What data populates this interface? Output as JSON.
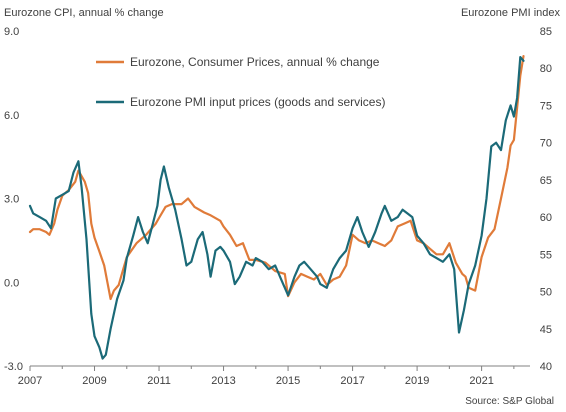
{
  "chart_data": {
    "type": "line",
    "left_axis_title": "Eurozone CPI, annual % change",
    "right_axis_title": "Eurozone PMI index",
    "source": "Source: S&P Global",
    "x_ticks": [
      "2007",
      "2009",
      "2011",
      "2013",
      "2015",
      "2017",
      "2019",
      "2021"
    ],
    "x_range": [
      2007.0,
      2022.5
    ],
    "left_ticks": [
      "9.0",
      "6.0",
      "3.0",
      "0.0",
      "-3.0"
    ],
    "left_range": [
      -3,
      9
    ],
    "right_ticks": [
      "85",
      "80",
      "75",
      "70",
      "65",
      "60",
      "55",
      "50",
      "45",
      "40"
    ],
    "right_range": [
      40,
      85
    ],
    "grid": false,
    "legend_position": "top-center",
    "series": [
      {
        "name": "Eurozone, Consumer Prices, annual % change",
        "axis": "left",
        "color": "#e07b39",
        "points": [
          [
            2007.0,
            1.8
          ],
          [
            2007.1,
            1.9
          ],
          [
            2007.3,
            1.9
          ],
          [
            2007.5,
            1.8
          ],
          [
            2007.6,
            1.7
          ],
          [
            2007.75,
            2.1
          ],
          [
            2007.85,
            2.6
          ],
          [
            2008.0,
            3.1
          ],
          [
            2008.2,
            3.3
          ],
          [
            2008.4,
            3.6
          ],
          [
            2008.5,
            4.0
          ],
          [
            2008.6,
            3.8
          ],
          [
            2008.7,
            3.6
          ],
          [
            2008.8,
            3.2
          ],
          [
            2008.9,
            2.1
          ],
          [
            2009.0,
            1.6
          ],
          [
            2009.15,
            1.1
          ],
          [
            2009.3,
            0.6
          ],
          [
            2009.4,
            0.0
          ],
          [
            2009.5,
            -0.6
          ],
          [
            2009.6,
            -0.3
          ],
          [
            2009.75,
            -0.1
          ],
          [
            2009.9,
            0.5
          ],
          [
            2010.0,
            0.9
          ],
          [
            2010.3,
            1.4
          ],
          [
            2010.6,
            1.7
          ],
          [
            2010.9,
            2.1
          ],
          [
            2011.0,
            2.3
          ],
          [
            2011.2,
            2.7
          ],
          [
            2011.4,
            2.8
          ],
          [
            2011.7,
            2.8
          ],
          [
            2011.9,
            3.0
          ],
          [
            2012.1,
            2.7
          ],
          [
            2012.4,
            2.5
          ],
          [
            2012.6,
            2.4
          ],
          [
            2012.9,
            2.2
          ],
          [
            2013.0,
            2.0
          ],
          [
            2013.2,
            1.7
          ],
          [
            2013.4,
            1.3
          ],
          [
            2013.6,
            1.4
          ],
          [
            2013.8,
            0.8
          ],
          [
            2014.0,
            0.8
          ],
          [
            2014.3,
            0.7
          ],
          [
            2014.6,
            0.4
          ],
          [
            2014.9,
            0.3
          ],
          [
            2015.0,
            -0.5
          ],
          [
            2015.2,
            0.0
          ],
          [
            2015.4,
            0.3
          ],
          [
            2015.6,
            0.2
          ],
          [
            2015.8,
            0.1
          ],
          [
            2016.0,
            0.3
          ],
          [
            2016.2,
            -0.1
          ],
          [
            2016.4,
            0.1
          ],
          [
            2016.6,
            0.2
          ],
          [
            2016.8,
            0.6
          ],
          [
            2017.0,
            1.7
          ],
          [
            2017.2,
            1.5
          ],
          [
            2017.4,
            1.4
          ],
          [
            2017.6,
            1.5
          ],
          [
            2017.8,
            1.4
          ],
          [
            2018.0,
            1.3
          ],
          [
            2018.2,
            1.5
          ],
          [
            2018.4,
            2.0
          ],
          [
            2018.6,
            2.1
          ],
          [
            2018.8,
            2.2
          ],
          [
            2019.0,
            1.5
          ],
          [
            2019.2,
            1.4
          ],
          [
            2019.4,
            1.2
          ],
          [
            2019.6,
            1.0
          ],
          [
            2019.8,
            1.0
          ],
          [
            2020.0,
            1.4
          ],
          [
            2020.2,
            0.7
          ],
          [
            2020.4,
            0.3
          ],
          [
            2020.5,
            0.2
          ],
          [
            2020.6,
            -0.2
          ],
          [
            2020.8,
            -0.3
          ],
          [
            2021.0,
            0.9
          ],
          [
            2021.2,
            1.6
          ],
          [
            2021.4,
            1.9
          ],
          [
            2021.6,
            3.0
          ],
          [
            2021.8,
            4.1
          ],
          [
            2021.9,
            4.9
          ],
          [
            2022.0,
            5.1
          ],
          [
            2022.2,
            7.4
          ],
          [
            2022.3,
            8.1
          ]
        ]
      },
      {
        "name": "Eurozone PMI input prices (goods and services)",
        "axis": "right",
        "color": "#1b6a78",
        "points": [
          [
            2007.0,
            61.5
          ],
          [
            2007.1,
            60.5
          ],
          [
            2007.3,
            60.0
          ],
          [
            2007.5,
            59.5
          ],
          [
            2007.65,
            58.5
          ],
          [
            2007.8,
            62.5
          ],
          [
            2008.0,
            63.0
          ],
          [
            2008.2,
            63.5
          ],
          [
            2008.35,
            66.0
          ],
          [
            2008.5,
            67.5
          ],
          [
            2008.6,
            64.0
          ],
          [
            2008.75,
            57.0
          ],
          [
            2008.9,
            47.0
          ],
          [
            2009.0,
            44.0
          ],
          [
            2009.15,
            42.5
          ],
          [
            2009.25,
            41.0
          ],
          [
            2009.35,
            41.5
          ],
          [
            2009.5,
            45.0
          ],
          [
            2009.7,
            49.0
          ],
          [
            2009.9,
            51.5
          ],
          [
            2010.0,
            54.5
          ],
          [
            2010.2,
            57.5
          ],
          [
            2010.35,
            60.0
          ],
          [
            2010.5,
            58.0
          ],
          [
            2010.65,
            56.5
          ],
          [
            2010.8,
            59.0
          ],
          [
            2010.95,
            61.5
          ],
          [
            2011.05,
            65.0
          ],
          [
            2011.15,
            66.8
          ],
          [
            2011.3,
            64.0
          ],
          [
            2011.5,
            61.0
          ],
          [
            2011.7,
            57.0
          ],
          [
            2011.85,
            53.5
          ],
          [
            2012.0,
            54.0
          ],
          [
            2012.2,
            57.0
          ],
          [
            2012.35,
            58.0
          ],
          [
            2012.5,
            55.0
          ],
          [
            2012.6,
            52.0
          ],
          [
            2012.75,
            55.5
          ],
          [
            2012.9,
            56.0
          ],
          [
            2013.0,
            55.5
          ],
          [
            2013.2,
            54.0
          ],
          [
            2013.35,
            51.0
          ],
          [
            2013.5,
            52.0
          ],
          [
            2013.7,
            54.0
          ],
          [
            2013.9,
            53.5
          ],
          [
            2014.0,
            54.5
          ],
          [
            2014.2,
            54.0
          ],
          [
            2014.4,
            53.0
          ],
          [
            2014.6,
            53.5
          ],
          [
            2014.8,
            51.5
          ],
          [
            2015.0,
            49.5
          ],
          [
            2015.2,
            52.0
          ],
          [
            2015.35,
            53.5
          ],
          [
            2015.5,
            54.0
          ],
          [
            2015.7,
            53.0
          ],
          [
            2015.9,
            52.0
          ],
          [
            2016.0,
            51.0
          ],
          [
            2016.2,
            50.5
          ],
          [
            2016.4,
            53.0
          ],
          [
            2016.6,
            54.5
          ],
          [
            2016.8,
            55.5
          ],
          [
            2017.0,
            58.5
          ],
          [
            2017.15,
            60.0
          ],
          [
            2017.3,
            58.0
          ],
          [
            2017.5,
            56.0
          ],
          [
            2017.7,
            58.0
          ],
          [
            2017.9,
            60.5
          ],
          [
            2018.0,
            61.5
          ],
          [
            2018.2,
            59.5
          ],
          [
            2018.4,
            60.0
          ],
          [
            2018.55,
            61.0
          ],
          [
            2018.7,
            60.5
          ],
          [
            2018.85,
            60.0
          ],
          [
            2019.0,
            57.5
          ],
          [
            2019.2,
            56.5
          ],
          [
            2019.4,
            55.0
          ],
          [
            2019.6,
            54.5
          ],
          [
            2019.8,
            54.0
          ],
          [
            2020.0,
            55.0
          ],
          [
            2020.15,
            53.0
          ],
          [
            2020.3,
            44.5
          ],
          [
            2020.45,
            47.5
          ],
          [
            2020.6,
            51.0
          ],
          [
            2020.8,
            53.5
          ],
          [
            2021.0,
            57.5
          ],
          [
            2021.15,
            62.5
          ],
          [
            2021.3,
            69.5
          ],
          [
            2021.45,
            70.0
          ],
          [
            2021.6,
            69.0
          ],
          [
            2021.75,
            73.0
          ],
          [
            2021.9,
            75.0
          ],
          [
            2022.0,
            73.5
          ],
          [
            2022.1,
            76.0
          ],
          [
            2022.2,
            81.5
          ],
          [
            2022.3,
            81.0
          ]
        ]
      }
    ]
  }
}
